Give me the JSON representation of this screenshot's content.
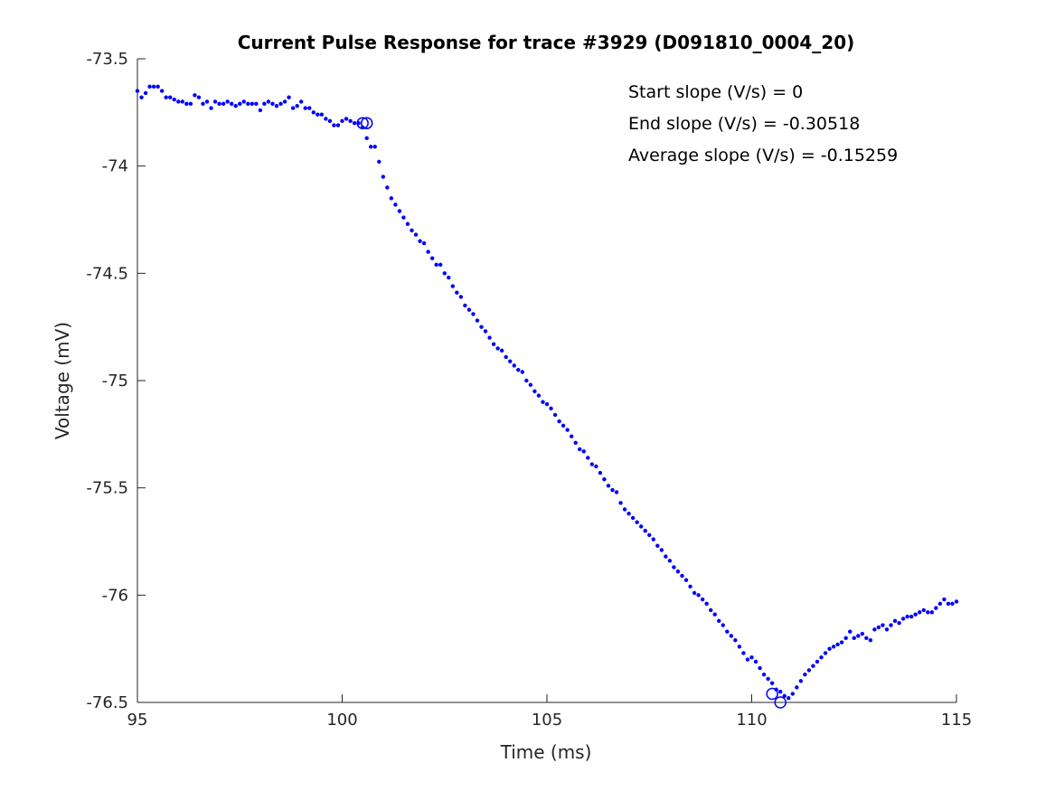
{
  "chart_data": {
    "type": "scatter",
    "title": "Current Pulse Response for trace #3929 (D091810_0004_20)",
    "xlabel": "Time (ms)",
    "ylabel": "Voltage (mV)",
    "xlim": [
      95,
      115
    ],
    "ylim": [
      -76.5,
      -73.5
    ],
    "xticks": [
      95,
      100,
      105,
      110,
      115
    ],
    "xtick_labels": [
      "95",
      "100",
      "105",
      "110",
      "115"
    ],
    "yticks": [
      -73.5,
      -74,
      -74.5,
      -75,
      -75.5,
      -76,
      -76.5
    ],
    "ytick_labels": [
      "-73.5",
      "-74",
      "-74.5",
      "-75",
      "-75.5",
      "-76",
      "-76.5"
    ],
    "grid": false,
    "point_color": "#0000ff",
    "annotations": [
      "Start slope (V/s) = 0",
      "End slope (V/s) = -0.30518",
      "Average slope (V/s) = -0.15259"
    ],
    "markers": [
      {
        "x": 100.5,
        "y": -73.8
      },
      {
        "x": 100.6,
        "y": -73.8
      },
      {
        "x": 110.5,
        "y": -76.46
      },
      {
        "x": 110.7,
        "y": -76.5
      }
    ],
    "series": [
      {
        "x": [
          95.0,
          95.1,
          95.2,
          95.3,
          95.4,
          95.5,
          95.6,
          95.7,
          95.8,
          95.9,
          96.0,
          96.1,
          96.2,
          96.3,
          96.4,
          96.5,
          96.6,
          96.7,
          96.8,
          96.9,
          97.0,
          97.1,
          97.2,
          97.3,
          97.4,
          97.5,
          97.6,
          97.7,
          97.8,
          97.9,
          98.0,
          98.1,
          98.2,
          98.3,
          98.4,
          98.5,
          98.6,
          98.7,
          98.8,
          98.9,
          99.0,
          99.1,
          99.2,
          99.3,
          99.4,
          99.5,
          99.6,
          99.7,
          99.8,
          99.9,
          100.0,
          100.1,
          100.2,
          100.3,
          100.4,
          100.5,
          100.6,
          100.7,
          100.8,
          100.9,
          101.0,
          101.1,
          101.2,
          101.3,
          101.4,
          101.5,
          101.6,
          101.7,
          101.8,
          101.9,
          102.0,
          102.1,
          102.2,
          102.3,
          102.4,
          102.5,
          102.6,
          102.7,
          102.8,
          102.9,
          103.0,
          103.1,
          103.2,
          103.3,
          103.4,
          103.5,
          103.6,
          103.7,
          103.8,
          103.9,
          104.0,
          104.1,
          104.2,
          104.3,
          104.4,
          104.5,
          104.6,
          104.7,
          104.8,
          104.9,
          105.0,
          105.1,
          105.2,
          105.3,
          105.4,
          105.5,
          105.6,
          105.7,
          105.8,
          105.9,
          106.0,
          106.1,
          106.2,
          106.3,
          106.4,
          106.5,
          106.6,
          106.7,
          106.8,
          106.9,
          107.0,
          107.1,
          107.2,
          107.3,
          107.4,
          107.5,
          107.6,
          107.7,
          107.8,
          107.9,
          108.0,
          108.1,
          108.2,
          108.3,
          108.4,
          108.5,
          108.6,
          108.7,
          108.8,
          108.9,
          109.0,
          109.1,
          109.2,
          109.3,
          109.4,
          109.5,
          109.6,
          109.7,
          109.8,
          109.9,
          110.0,
          110.1,
          110.2,
          110.3,
          110.4,
          110.5,
          110.6,
          110.7,
          110.8,
          110.9,
          111.0,
          111.1,
          111.2,
          111.3,
          111.4,
          111.5,
          111.6,
          111.7,
          111.8,
          111.9,
          112.0,
          112.1,
          112.2,
          112.3,
          112.4,
          112.5,
          112.6,
          112.7,
          112.8,
          112.9,
          113.0,
          113.1,
          113.2,
          113.3,
          113.4,
          113.5,
          113.6,
          113.7,
          113.8,
          113.9,
          114.0,
          114.1,
          114.2,
          114.3,
          114.4,
          114.5,
          114.6,
          114.7,
          114.8,
          114.9,
          115.0
        ],
        "y": [
          -73.65,
          -73.68,
          -73.66,
          -73.63,
          -73.63,
          -73.63,
          -73.65,
          -73.68,
          -73.68,
          -73.69,
          -73.7,
          -73.7,
          -73.71,
          -73.71,
          -73.67,
          -73.68,
          -73.71,
          -73.7,
          -73.73,
          -73.7,
          -73.71,
          -73.71,
          -73.7,
          -73.71,
          -73.72,
          -73.71,
          -73.7,
          -73.71,
          -73.71,
          -73.71,
          -73.74,
          -73.71,
          -73.7,
          -73.71,
          -73.72,
          -73.71,
          -73.7,
          -73.68,
          -73.73,
          -73.72,
          -73.7,
          -73.73,
          -73.73,
          -73.75,
          -73.76,
          -73.76,
          -73.78,
          -73.79,
          -73.81,
          -73.81,
          -73.79,
          -73.78,
          -73.79,
          -73.8,
          -73.8,
          -73.82,
          -73.87,
          -73.91,
          -73.91,
          -73.98,
          -74.05,
          -74.1,
          -74.15,
          -74.18,
          -74.21,
          -74.24,
          -74.27,
          -74.3,
          -74.32,
          -74.35,
          -74.36,
          -74.4,
          -74.43,
          -74.46,
          -74.46,
          -74.5,
          -74.52,
          -74.56,
          -74.59,
          -74.61,
          -74.65,
          -74.67,
          -74.69,
          -74.72,
          -74.75,
          -74.77,
          -74.8,
          -74.83,
          -74.85,
          -74.86,
          -74.89,
          -74.91,
          -74.93,
          -74.95,
          -74.96,
          -75.0,
          -75.02,
          -75.05,
          -75.07,
          -75.1,
          -75.11,
          -75.13,
          -75.16,
          -75.19,
          -75.21,
          -75.23,
          -75.26,
          -75.29,
          -75.32,
          -75.33,
          -75.36,
          -75.39,
          -75.4,
          -75.43,
          -75.46,
          -75.49,
          -75.51,
          -75.52,
          -75.57,
          -75.6,
          -75.62,
          -75.64,
          -75.66,
          -75.68,
          -75.7,
          -75.72,
          -75.74,
          -75.77,
          -75.79,
          -75.82,
          -75.84,
          -75.87,
          -75.89,
          -75.91,
          -75.93,
          -75.96,
          -75.99,
          -76.0,
          -76.02,
          -76.04,
          -76.07,
          -76.09,
          -76.12,
          -76.14,
          -76.17,
          -76.19,
          -76.21,
          -76.24,
          -76.27,
          -76.3,
          -76.29,
          -76.31,
          -76.34,
          -76.37,
          -76.39,
          -76.41,
          -76.44,
          -76.45,
          -76.47,
          -76.48,
          -76.46,
          -76.43,
          -76.4,
          -76.37,
          -76.35,
          -76.33,
          -76.31,
          -76.29,
          -76.27,
          -76.25,
          -76.24,
          -76.23,
          -76.22,
          -76.2,
          -76.17,
          -76.2,
          -76.19,
          -76.18,
          -76.2,
          -76.21,
          -76.16,
          -76.15,
          -76.14,
          -76.16,
          -76.14,
          -76.12,
          -76.13,
          -76.11,
          -76.1,
          -76.1,
          -76.09,
          -76.08,
          -76.07,
          -76.08,
          -76.08,
          -76.06,
          -76.04,
          -76.02,
          -76.04,
          -76.04,
          -76.03
        ]
      }
    ]
  }
}
